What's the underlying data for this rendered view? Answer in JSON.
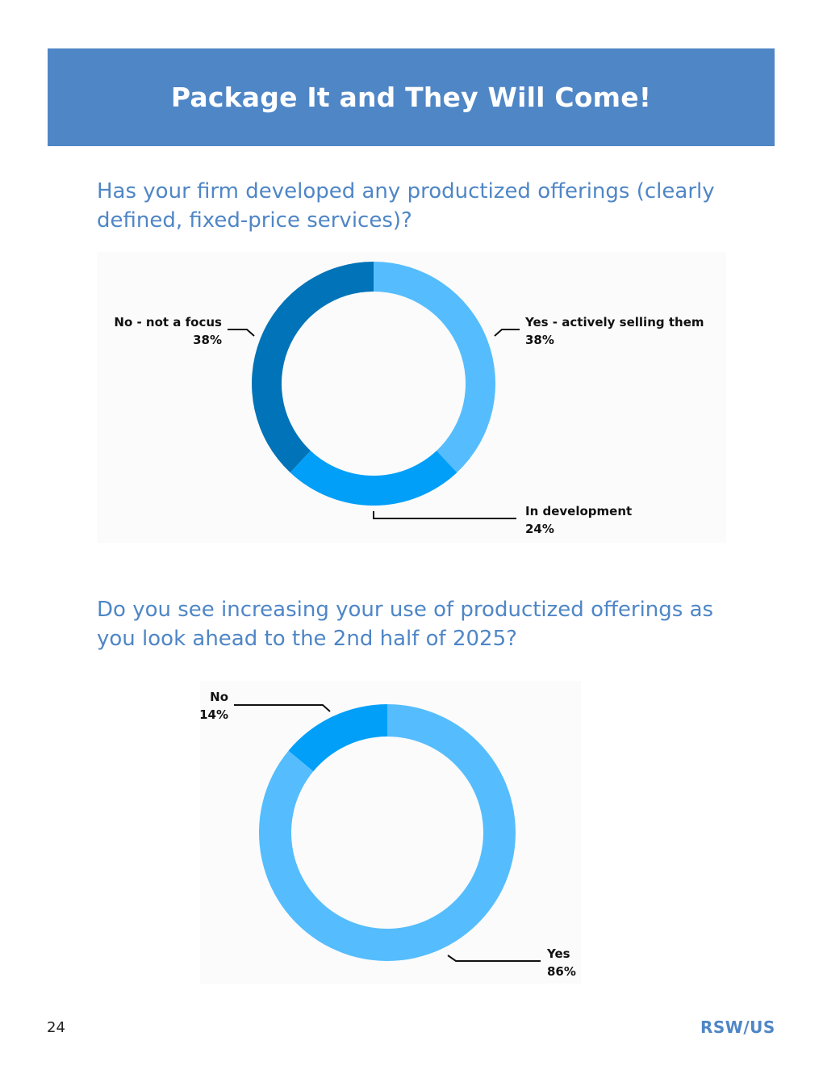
{
  "page": {
    "title": "Package It and They Will Come!",
    "page_number": "24",
    "brand": "RSW/US"
  },
  "colors": {
    "banner": "#4f86c6",
    "light_blue": "#55bdfd",
    "medium_blue": "#029ff9",
    "dark_blue": "#0173b8"
  },
  "chart_data": [
    {
      "type": "pie",
      "title": "Has your firm developed any productized offerings (clearly defined, fixed-price services)?",
      "slices": [
        {
          "label": "Yes - actively selling them",
          "value": 38,
          "value_label": "38%",
          "color": "#55bdfd"
        },
        {
          "label": "In development",
          "value": 24,
          "value_label": "24%",
          "color": "#029ff9"
        },
        {
          "label": "No - not a focus",
          "value": 38,
          "value_label": "38%",
          "color": "#0173b8"
        }
      ]
    },
    {
      "type": "pie",
      "title": "Do you see increasing your use of productized offerings as you look ahead to the 2nd half of 2025?",
      "slices": [
        {
          "label": "Yes",
          "value": 86,
          "value_label": "86%",
          "color": "#55bdfd"
        },
        {
          "label": "No",
          "value": 14,
          "value_label": "14%",
          "color": "#029ff9"
        }
      ]
    }
  ]
}
